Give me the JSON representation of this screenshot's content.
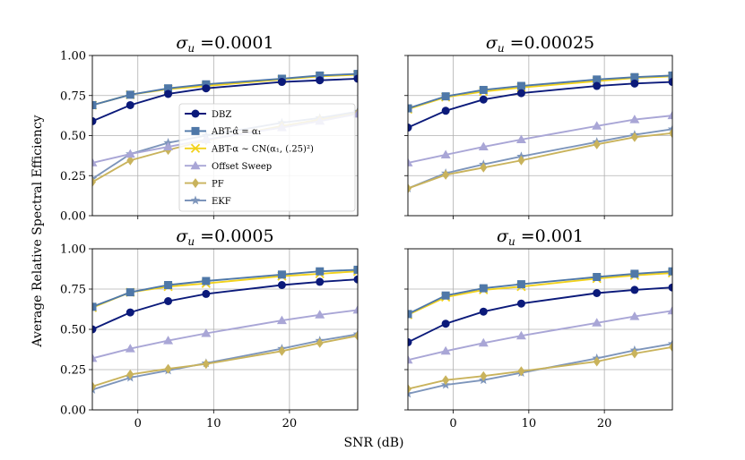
{
  "figure": {
    "xlabel": "SNR (dB)",
    "ylabel": "Average Relative Spectral Efficiency"
  },
  "legend": {
    "placement": "inside top-left panel, lower-center",
    "items": [
      {
        "label": "DBZ",
        "color": "#0b1a7a",
        "marker": "circle"
      },
      {
        "label": "ABT-α̂ = α₁",
        "color": "#4f78a8",
        "marker": "square"
      },
      {
        "label": "ABT-α ∼ CN(α₁, (.25)²)",
        "color": "#f2d21b",
        "marker": "x"
      },
      {
        "label": "Offset Sweep",
        "color": "#a9a6d6",
        "marker": "triangle"
      },
      {
        "label": "PF",
        "color": "#c9b35c",
        "marker": "diamond"
      },
      {
        "label": "EKF",
        "color": "#7d95bb",
        "marker": "star"
      }
    ]
  },
  "chart_data": [
    {
      "type": "line",
      "title": "σu =0.0001",
      "title_sigma": "σ",
      "title_sub": "u",
      "title_value": " =0.0001",
      "xlabel": "",
      "ylabel": "",
      "xlim": [
        -6,
        29
      ],
      "ylim": [
        0,
        1
      ],
      "xticks": [
        0,
        10,
        20
      ],
      "yticks": [
        0,
        0.25,
        0.5,
        0.75,
        1.0
      ],
      "xtick_labels": [
        "0",
        "10",
        "20"
      ],
      "ytick_labels": [
        "0.00",
        "0.25",
        "0.50",
        "0.75",
        "1.00"
      ],
      "show_xtick_labels": false,
      "show_ytick_labels": true,
      "grid": true,
      "x": [
        -6,
        -1,
        4,
        9,
        19,
        24,
        29
      ],
      "series": [
        {
          "name": "DBZ",
          "values": [
            0.59,
            0.69,
            0.76,
            0.795,
            0.835,
            0.845,
            0.855
          ]
        },
        {
          "name": "ABT-α̂ = α₁",
          "values": [
            0.69,
            0.755,
            0.795,
            0.82,
            0.855,
            0.875,
            0.885
          ]
        },
        {
          "name": "ABT-α ∼ CN(α₁, (.25)²)",
          "values": [
            0.69,
            0.755,
            0.79,
            0.81,
            0.85,
            0.87,
            0.88
          ]
        },
        {
          "name": "Offset Sweep",
          "values": [
            0.33,
            0.385,
            0.43,
            0.475,
            0.55,
            0.59,
            0.635
          ]
        },
        {
          "name": "PF",
          "values": [
            0.21,
            0.345,
            0.41,
            0.47,
            0.56,
            0.6,
            0.64
          ]
        },
        {
          "name": "EKF",
          "values": [
            0.23,
            0.385,
            0.455,
            0.5,
            0.58,
            0.61,
            0.65
          ]
        }
      ]
    },
    {
      "type": "line",
      "title": "σu =0.00025",
      "title_sigma": "σ",
      "title_sub": "u",
      "title_value": " =0.00025",
      "xlabel": "",
      "ylabel": "",
      "xlim": [
        -6,
        29
      ],
      "ylim": [
        0,
        1
      ],
      "xticks": [
        0,
        10,
        20
      ],
      "yticks": [
        0,
        0.25,
        0.5,
        0.75,
        1.0
      ],
      "xtick_labels": [
        "0",
        "10",
        "20"
      ],
      "ytick_labels": [
        "0.00",
        "0.25",
        "0.50",
        "0.75",
        "1.00"
      ],
      "show_xtick_labels": false,
      "show_ytick_labels": false,
      "grid": true,
      "x": [
        -6,
        -1,
        4,
        9,
        19,
        24,
        29
      ],
      "series": [
        {
          "name": "DBZ",
          "values": [
            0.55,
            0.655,
            0.725,
            0.765,
            0.81,
            0.825,
            0.835
          ]
        },
        {
          "name": "ABT-α̂ = α₁",
          "values": [
            0.67,
            0.745,
            0.785,
            0.81,
            0.85,
            0.865,
            0.875
          ]
        },
        {
          "name": "ABT-α ∼ CN(α₁, (.25)²)",
          "values": [
            0.665,
            0.74,
            0.775,
            0.8,
            0.84,
            0.86,
            0.87
          ]
        },
        {
          "name": "Offset Sweep",
          "values": [
            0.33,
            0.38,
            0.43,
            0.475,
            0.56,
            0.6,
            0.625
          ]
        },
        {
          "name": "PF",
          "values": [
            0.17,
            0.255,
            0.3,
            0.345,
            0.445,
            0.49,
            0.515
          ]
        },
        {
          "name": "EKF",
          "values": [
            0.17,
            0.265,
            0.32,
            0.37,
            0.46,
            0.505,
            0.54
          ]
        }
      ]
    },
    {
      "type": "line",
      "title": "σu =0.0005",
      "title_sigma": "σ",
      "title_sub": "u",
      "title_value": " =0.0005",
      "xlabel": "",
      "ylabel": "",
      "xlim": [
        -6,
        29
      ],
      "ylim": [
        0,
        1
      ],
      "xticks": [
        0,
        10,
        20
      ],
      "yticks": [
        0,
        0.25,
        0.5,
        0.75,
        1.0
      ],
      "xtick_labels": [
        "0",
        "10",
        "20"
      ],
      "ytick_labels": [
        "0.00",
        "0.25",
        "0.50",
        "0.75",
        "1.00"
      ],
      "show_xtick_labels": true,
      "show_ytick_labels": true,
      "grid": true,
      "x": [
        -6,
        -1,
        4,
        9,
        19,
        24,
        29
      ],
      "series": [
        {
          "name": "DBZ",
          "values": [
            0.5,
            0.605,
            0.675,
            0.72,
            0.775,
            0.795,
            0.81
          ]
        },
        {
          "name": "ABT-α̂ = α₁",
          "values": [
            0.64,
            0.73,
            0.775,
            0.8,
            0.84,
            0.86,
            0.87
          ]
        },
        {
          "name": "ABT-α ∼ CN(α₁, (.25)²)",
          "values": [
            0.635,
            0.73,
            0.765,
            0.785,
            0.83,
            0.845,
            0.86
          ]
        },
        {
          "name": "Offset Sweep",
          "values": [
            0.32,
            0.38,
            0.43,
            0.475,
            0.555,
            0.59,
            0.62
          ]
        },
        {
          "name": "PF",
          "values": [
            0.145,
            0.22,
            0.255,
            0.285,
            0.365,
            0.415,
            0.46
          ]
        },
        {
          "name": "EKF",
          "values": [
            0.125,
            0.2,
            0.245,
            0.29,
            0.38,
            0.43,
            0.47
          ]
        }
      ]
    },
    {
      "type": "line",
      "title": "σu =0.001",
      "title_sigma": "σ",
      "title_sub": "u",
      "title_value": " =0.001",
      "xlabel": "",
      "ylabel": "",
      "xlim": [
        -6,
        29
      ],
      "ylim": [
        0,
        1
      ],
      "xticks": [
        0,
        10,
        20
      ],
      "yticks": [
        0,
        0.25,
        0.5,
        0.75,
        1.0
      ],
      "xtick_labels": [
        "0",
        "10",
        "20"
      ],
      "ytick_labels": [
        "0.00",
        "0.25",
        "0.50",
        "0.75",
        "1.00"
      ],
      "show_xtick_labels": true,
      "show_ytick_labels": false,
      "grid": true,
      "x": [
        -6,
        -1,
        4,
        9,
        19,
        24,
        29
      ],
      "series": [
        {
          "name": "DBZ",
          "values": [
            0.42,
            0.535,
            0.61,
            0.66,
            0.725,
            0.745,
            0.76
          ]
        },
        {
          "name": "ABT-α̂ = α₁",
          "values": [
            0.595,
            0.71,
            0.755,
            0.78,
            0.825,
            0.845,
            0.86
          ]
        },
        {
          "name": "ABT-α ∼ CN(α₁, (.25)²)",
          "values": [
            0.59,
            0.7,
            0.745,
            0.765,
            0.815,
            0.835,
            0.85
          ]
        },
        {
          "name": "Offset Sweep",
          "values": [
            0.31,
            0.365,
            0.415,
            0.46,
            0.54,
            0.58,
            0.615
          ]
        },
        {
          "name": "PF",
          "values": [
            0.13,
            0.185,
            0.21,
            0.24,
            0.3,
            0.35,
            0.39
          ]
        },
        {
          "name": "EKF",
          "values": [
            0.1,
            0.155,
            0.185,
            0.23,
            0.32,
            0.37,
            0.41
          ]
        }
      ]
    }
  ]
}
